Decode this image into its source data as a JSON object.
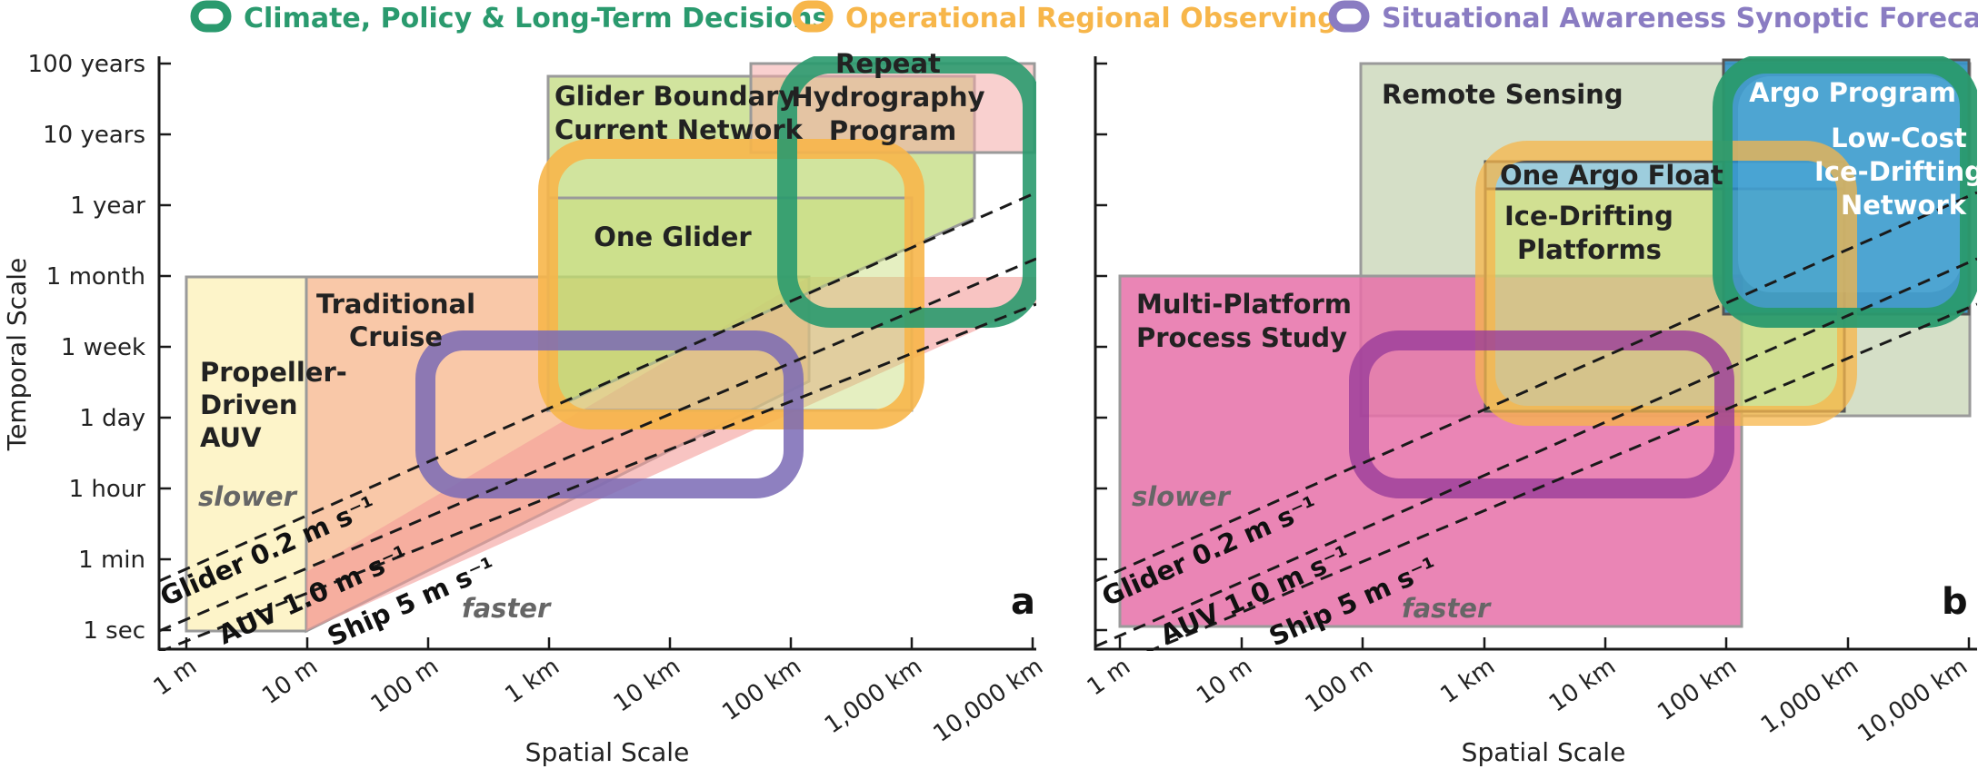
{
  "legend": [
    {
      "label": "Climate, Policy & Long-Term Decisions",
      "color": "#2a9a6e"
    },
    {
      "label": "Operational Regional Observing",
      "color": "#f7b64a"
    },
    {
      "label": "Situational Awareness Synoptic Forecast",
      "color": "#8a7cc2"
    }
  ],
  "axes": {
    "x_title": "Spatial Scale",
    "y_title": "Temporal Scale",
    "x_ticks": [
      "1 m",
      "10 m",
      "100 m",
      "1 km",
      "10 km",
      "100 km",
      "1,000 km",
      "10,000 km"
    ],
    "y_ticks": [
      "100 years",
      "10 years",
      "1 year",
      "1 month",
      "1 week",
      "1 day",
      "1 hour",
      "1 min",
      "1 sec"
    ]
  },
  "panel_a": {
    "letter": "a",
    "regions": {
      "propeller_auv": "Propeller-Driven AUV",
      "traditional_cruise": "Traditional Cruise",
      "glider_boundary": "Glider Boundary Current Network",
      "repeat_hydrography": "Repeat Hydrography Program",
      "one_glider": "One Glider"
    },
    "speed_lines": [
      "Glider 0.2 m s⁻¹",
      "AUV 1.0 m s⁻¹",
      "Ship 5 m s⁻¹"
    ],
    "slower": "slower",
    "faster": "faster"
  },
  "panel_b": {
    "letter": "b",
    "regions": {
      "remote_sensing": "Remote Sensing",
      "argo_program": "Argo Program",
      "low_cost_network": "Low-Cost Ice-Drifting Network",
      "one_argo_float": "One Argo Float",
      "ice_drifting": "Ice-Drifting Platforms",
      "multi_platform": "Multi-Platform Process Study"
    },
    "speed_lines": [
      "Glider 0.2 m s⁻¹",
      "AUV 1.0 m s⁻¹",
      "Ship 5 m s⁻¹"
    ],
    "slower": "slower",
    "faster": "faster"
  }
}
